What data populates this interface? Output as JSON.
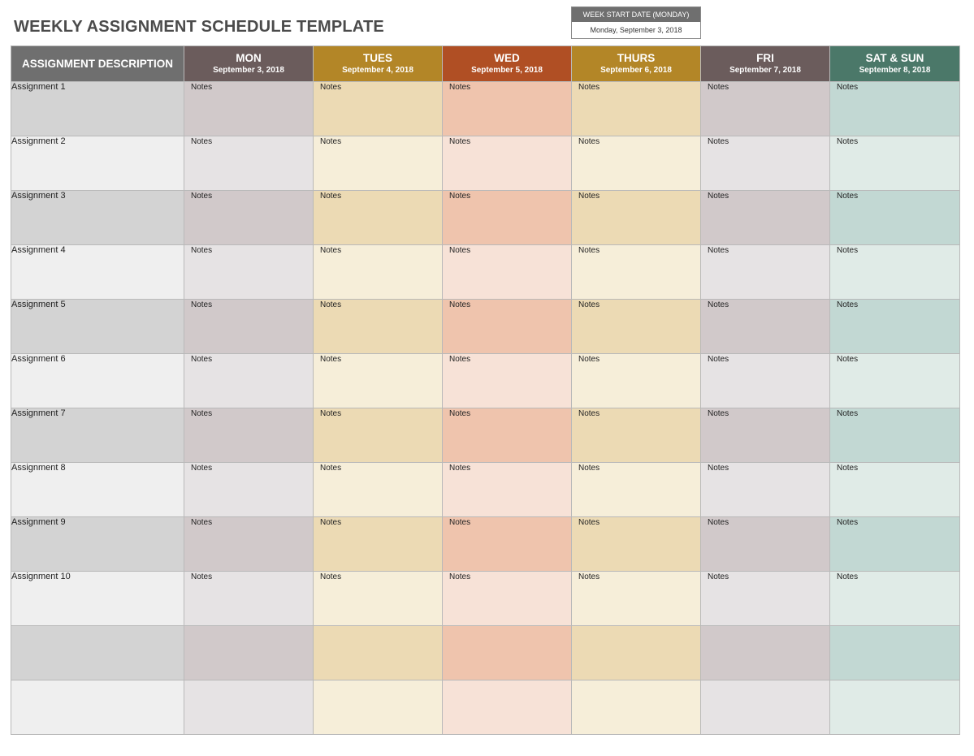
{
  "title": "WEEKLY ASSIGNMENT SCHEDULE TEMPLATE",
  "week_start": {
    "label": "WEEK START DATE (MONDAY)",
    "value": "Monday, September 3, 2018"
  },
  "header": {
    "description_label": "ASSIGNMENT DESCRIPTION",
    "days": [
      {
        "name": "MON",
        "date": "September 3, 2018",
        "color": "#6b5c5c",
        "shade_odd": "#d1c9ca",
        "shade_even": "#e6e3e4"
      },
      {
        "name": "TUES",
        "date": "September 4, 2018",
        "color": "#b38627",
        "shade_odd": "#ecdab4",
        "shade_even": "#f6eed9"
      },
      {
        "name": "WED",
        "date": "September 5, 2018",
        "color": "#b04f24",
        "shade_odd": "#efc4ad",
        "shade_even": "#f7e2d7"
      },
      {
        "name": "THURS",
        "date": "September 6, 2018",
        "color": "#b38627",
        "shade_odd": "#ecdab4",
        "shade_even": "#f6eed9"
      },
      {
        "name": "FRI",
        "date": "September 7, 2018",
        "color": "#6b5c5c",
        "shade_odd": "#d1c9ca",
        "shade_even": "#e6e3e4"
      },
      {
        "name": "SAT & SUN",
        "date": "September 8, 2018",
        "color": "#4b7869",
        "shade_odd": "#c2d8d3",
        "shade_even": "#e0ebe7"
      }
    ]
  },
  "desc_colors": {
    "odd": "#d3d3d3",
    "even": "#efefef"
  },
  "rows": [
    {
      "description": "Assignment 1",
      "notes": [
        "Notes",
        "Notes",
        "Notes",
        "Notes",
        "Notes",
        "Notes"
      ]
    },
    {
      "description": "Assignment 2",
      "notes": [
        "Notes",
        "Notes",
        "Notes",
        "Notes",
        "Notes",
        "Notes"
      ]
    },
    {
      "description": "Assignment 3",
      "notes": [
        "Notes",
        "Notes",
        "Notes",
        "Notes",
        "Notes",
        "Notes"
      ]
    },
    {
      "description": "Assignment 4",
      "notes": [
        "Notes",
        "Notes",
        "Notes",
        "Notes",
        "Notes",
        "Notes"
      ]
    },
    {
      "description": "Assignment 5",
      "notes": [
        "Notes",
        "Notes",
        "Notes",
        "Notes",
        "Notes",
        "Notes"
      ]
    },
    {
      "description": "Assignment 6",
      "notes": [
        "Notes",
        "Notes",
        "Notes",
        "Notes",
        "Notes",
        "Notes"
      ]
    },
    {
      "description": "Assignment 7",
      "notes": [
        "Notes",
        "Notes",
        "Notes",
        "Notes",
        "Notes",
        "Notes"
      ]
    },
    {
      "description": "Assignment 8",
      "notes": [
        "Notes",
        "Notes",
        "Notes",
        "Notes",
        "Notes",
        "Notes"
      ]
    },
    {
      "description": "Assignment 9",
      "notes": [
        "Notes",
        "Notes",
        "Notes",
        "Notes",
        "Notes",
        "Notes"
      ]
    },
    {
      "description": "Assignment 10",
      "notes": [
        "Notes",
        "Notes",
        "Notes",
        "Notes",
        "Notes",
        "Notes"
      ]
    },
    {
      "description": "",
      "notes": [
        "",
        "",
        "",
        "",
        "",
        ""
      ]
    },
    {
      "description": "",
      "notes": [
        "",
        "",
        "",
        "",
        "",
        ""
      ]
    }
  ]
}
